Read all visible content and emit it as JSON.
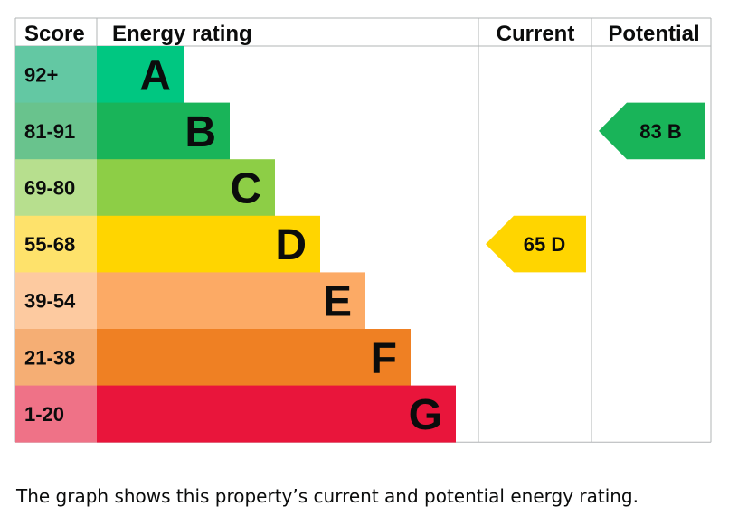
{
  "chart_data": {
    "type": "bar",
    "headers": {
      "score": "Score",
      "rating": "Energy rating",
      "current": "Current",
      "potential": "Potential"
    },
    "bands": [
      {
        "score": "92+",
        "letter": "A",
        "color": "#00c781",
        "score_bg": "#63c8a3"
      },
      {
        "score": "81-91",
        "letter": "B",
        "color": "#19b459",
        "score_bg": "#69c38d"
      },
      {
        "score": "69-80",
        "letter": "C",
        "color": "#8dce46",
        "score_bg": "#b7df8e"
      },
      {
        "score": "55-68",
        "letter": "D",
        "color": "#ffd500",
        "score_bg": "#fee26b"
      },
      {
        "score": "39-54",
        "letter": "E",
        "color": "#fcaa65",
        "score_bg": "#fdcaa0"
      },
      {
        "score": "21-38",
        "letter": "F",
        "color": "#ef8023",
        "score_bg": "#f5ae74"
      },
      {
        "score": "1-20",
        "letter": "G",
        "color": "#e9153b",
        "score_bg": "#ef7287"
      }
    ],
    "current": {
      "value": 65,
      "letter": "D",
      "label": "65  D",
      "color": "#ffd500"
    },
    "potential": {
      "value": 83,
      "letter": "B",
      "label": "83  B",
      "color": "#19b459"
    }
  },
  "caption": "The graph shows this property’s current and potential energy rating."
}
